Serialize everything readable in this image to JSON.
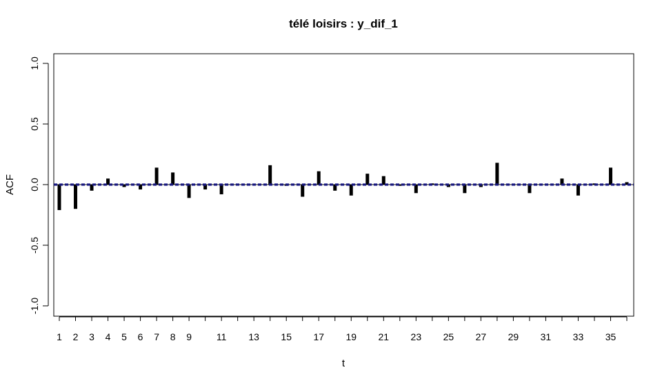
{
  "chart_data": {
    "type": "bar",
    "title": "télé loisirs : y_dif_1",
    "xlabel": "t",
    "ylabel": "ACF",
    "ylim": [
      -1.0,
      1.0
    ],
    "xlim": [
      0.5,
      36.3
    ],
    "y_ticks": [
      "-1.0",
      "-0.5",
      "0.0",
      "0.5",
      "1.0"
    ],
    "x_tick_positions": [
      1,
      2,
      3,
      4,
      5,
      6,
      7,
      8,
      9,
      10,
      11,
      12,
      13,
      14,
      15,
      16,
      17,
      18,
      19,
      20,
      21,
      22,
      23,
      24,
      25,
      26,
      27,
      28,
      29,
      30,
      31,
      32,
      33,
      34,
      35,
      36
    ],
    "x_tick_labels": [
      "1",
      "2",
      "3",
      "4",
      "5",
      "6",
      "7",
      "8",
      "9",
      "",
      "11",
      "",
      "13",
      "",
      "15",
      "",
      "17",
      "",
      "19",
      "",
      "21",
      "",
      "23",
      "",
      "25",
      "",
      "27",
      "",
      "29",
      "",
      "31",
      "",
      "33",
      "",
      "35",
      ""
    ],
    "lags": [
      1,
      2,
      3,
      4,
      5,
      6,
      7,
      8,
      9,
      10,
      11,
      12,
      13,
      14,
      15,
      16,
      17,
      18,
      19,
      20,
      21,
      22,
      23,
      24,
      25,
      26,
      27,
      28,
      29,
      30,
      31,
      32,
      33,
      34,
      35,
      36
    ],
    "values": [
      -0.21,
      -0.2,
      -0.05,
      0.05,
      -0.02,
      -0.04,
      0.14,
      0.1,
      -0.11,
      -0.04,
      -0.08,
      0.0,
      0.0,
      0.16,
      -0.01,
      -0.1,
      0.11,
      -0.05,
      -0.09,
      0.09,
      0.07,
      -0.01,
      -0.07,
      0.01,
      -0.02,
      -0.07,
      -0.02,
      0.18,
      0.0,
      -0.07,
      0.0,
      0.05,
      -0.09,
      0.01,
      0.14,
      0.02
    ],
    "confidence_band": [
      -0.005,
      0.005
    ],
    "band_color": "#1a1a8c",
    "bar_color": "#000000",
    "grid": false
  }
}
